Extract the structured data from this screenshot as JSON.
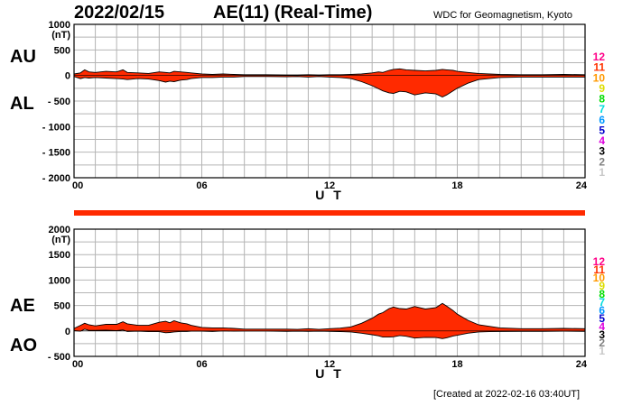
{
  "header": {
    "date": "2022/02/15",
    "title": "AE(11) (Real-Time)",
    "organization": "WDC for Geomagnetism, Kyoto"
  },
  "footer": {
    "created": "[Created at 2022-02-16 03:40UT]"
  },
  "colors": {
    "fill": "#ff2a00",
    "grid": "#b4b4b4",
    "count_scale": [
      "#c8c8c8",
      "#808080",
      "#000000",
      "#dd00dd",
      "#0000cc",
      "#0099ff",
      "#00dddd",
      "#00dd00",
      "#dddd00",
      "#ff9900",
      "#ff3300",
      "#ff0088"
    ]
  },
  "station_count_scale": [
    "12",
    "11",
    "10",
    "9",
    "8",
    "7",
    "6",
    "5",
    "4",
    "3",
    "2",
    "1"
  ],
  "station_count_bar": {
    "value": 11,
    "color": "#ff2a00"
  },
  "chart_data": [
    {
      "type": "area",
      "name": "AU/AL",
      "side_labels": [
        "AU",
        "AL"
      ],
      "xlabel": "U T",
      "xlim": [
        0,
        24
      ],
      "ylim": [
        -2000,
        1000
      ],
      "ytick_values": [
        1000,
        500,
        0,
        -500,
        -1000,
        -1500,
        -2000
      ],
      "ytick_labels": [
        "1000",
        "500",
        "0",
        "- 500",
        "- 1000",
        "- 1500",
        "- 2000"
      ],
      "yunit": "(nT)",
      "xtick_values": [
        0,
        6,
        12,
        18,
        24
      ],
      "xtick_labels": [
        "00",
        "06",
        "12",
        "18",
        "24"
      ],
      "grid": true,
      "x": [
        0,
        0.3,
        0.5,
        0.7,
        1,
        1.5,
        2,
        2.3,
        2.5,
        3,
        3.5,
        4,
        4.3,
        4.5,
        4.7,
        5,
        5.3,
        5.5,
        6,
        6.5,
        7,
        7.5,
        8,
        9,
        10,
        10.5,
        11,
        11.5,
        12,
        12.5,
        13,
        13.5,
        14,
        14.3,
        14.5,
        14.8,
        15,
        15.3,
        15.6,
        16,
        16.5,
        17,
        17.3,
        17.5,
        17.8,
        18,
        18.5,
        19,
        19.5,
        20,
        21,
        22,
        23,
        24
      ],
      "series": [
        {
          "name": "AU",
          "values": [
            30,
            50,
            110,
            70,
            60,
            80,
            70,
            110,
            60,
            50,
            40,
            70,
            60,
            50,
            80,
            70,
            60,
            50,
            30,
            20,
            30,
            20,
            15,
            15,
            10,
            10,
            15,
            10,
            15,
            15,
            20,
            30,
            50,
            70,
            60,
            100,
            120,
            130,
            110,
            100,
            90,
            100,
            120,
            110,
            100,
            80,
            60,
            40,
            30,
            20,
            15,
            15,
            20,
            15
          ]
        },
        {
          "name": "AL",
          "values": [
            -20,
            -60,
            -40,
            -50,
            -40,
            -50,
            -60,
            -70,
            -80,
            -60,
            -70,
            -100,
            -130,
            -110,
            -120,
            -90,
            -80,
            -60,
            -40,
            -40,
            -30,
            -30,
            -20,
            -20,
            -25,
            -20,
            -30,
            -20,
            -30,
            -40,
            -60,
            -120,
            -200,
            -260,
            -300,
            -340,
            -350,
            -310,
            -320,
            -380,
            -340,
            -360,
            -420,
            -380,
            -300,
            -250,
            -150,
            -80,
            -60,
            -40,
            -30,
            -30,
            -30,
            -30
          ]
        }
      ]
    },
    {
      "type": "area",
      "name": "AE/AO",
      "side_labels": [
        "AE",
        "AO"
      ],
      "xlabel": "U T",
      "xlim": [
        0,
        24
      ],
      "ylim": [
        -500,
        2000
      ],
      "ytick_values": [
        2000,
        1500,
        1000,
        500,
        0,
        -500
      ],
      "ytick_labels": [
        "2000",
        "1500",
        "1000",
        "500",
        "0",
        "- 500"
      ],
      "yunit": "(nT)",
      "xtick_values": [
        0,
        6,
        12,
        18,
        24
      ],
      "xtick_labels": [
        "00",
        "06",
        "12",
        "18",
        "24"
      ],
      "grid": true,
      "x": [
        0,
        0.3,
        0.5,
        0.7,
        1,
        1.5,
        2,
        2.3,
        2.5,
        3,
        3.5,
        4,
        4.3,
        4.5,
        4.7,
        5,
        5.3,
        5.5,
        6,
        6.5,
        7,
        7.5,
        8,
        9,
        10,
        10.5,
        11,
        11.5,
        12,
        12.5,
        13,
        13.5,
        14,
        14.3,
        14.5,
        14.8,
        15,
        15.3,
        15.6,
        16,
        16.5,
        17,
        17.3,
        17.5,
        17.8,
        18,
        18.5,
        19,
        19.5,
        20,
        21,
        22,
        23,
        24
      ],
      "series": [
        {
          "name": "AE",
          "values": [
            50,
            110,
            150,
            120,
            100,
            130,
            130,
            180,
            140,
            110,
            110,
            170,
            190,
            160,
            200,
            160,
            140,
            110,
            70,
            60,
            60,
            50,
            35,
            35,
            35,
            30,
            45,
            30,
            45,
            55,
            80,
            150,
            250,
            330,
            360,
            440,
            470,
            440,
            430,
            480,
            430,
            460,
            540,
            490,
            400,
            330,
            210,
            120,
            90,
            60,
            45,
            45,
            50,
            45
          ]
        },
        {
          "name": "AO",
          "values": [
            5,
            -5,
            35,
            10,
            10,
            15,
            5,
            20,
            -10,
            -5,
            -15,
            -15,
            -35,
            -30,
            -20,
            -10,
            -10,
            -5,
            -5,
            -10,
            0,
            -5,
            -2,
            -2,
            -8,
            -5,
            -8,
            -5,
            -8,
            -12,
            -20,
            -45,
            -75,
            -95,
            -120,
            -120,
            -115,
            -90,
            -105,
            -140,
            -125,
            -130,
            -150,
            -135,
            -100,
            -85,
            -45,
            -20,
            -15,
            -10,
            -8,
            -8,
            -5,
            -8
          ]
        }
      ]
    }
  ]
}
